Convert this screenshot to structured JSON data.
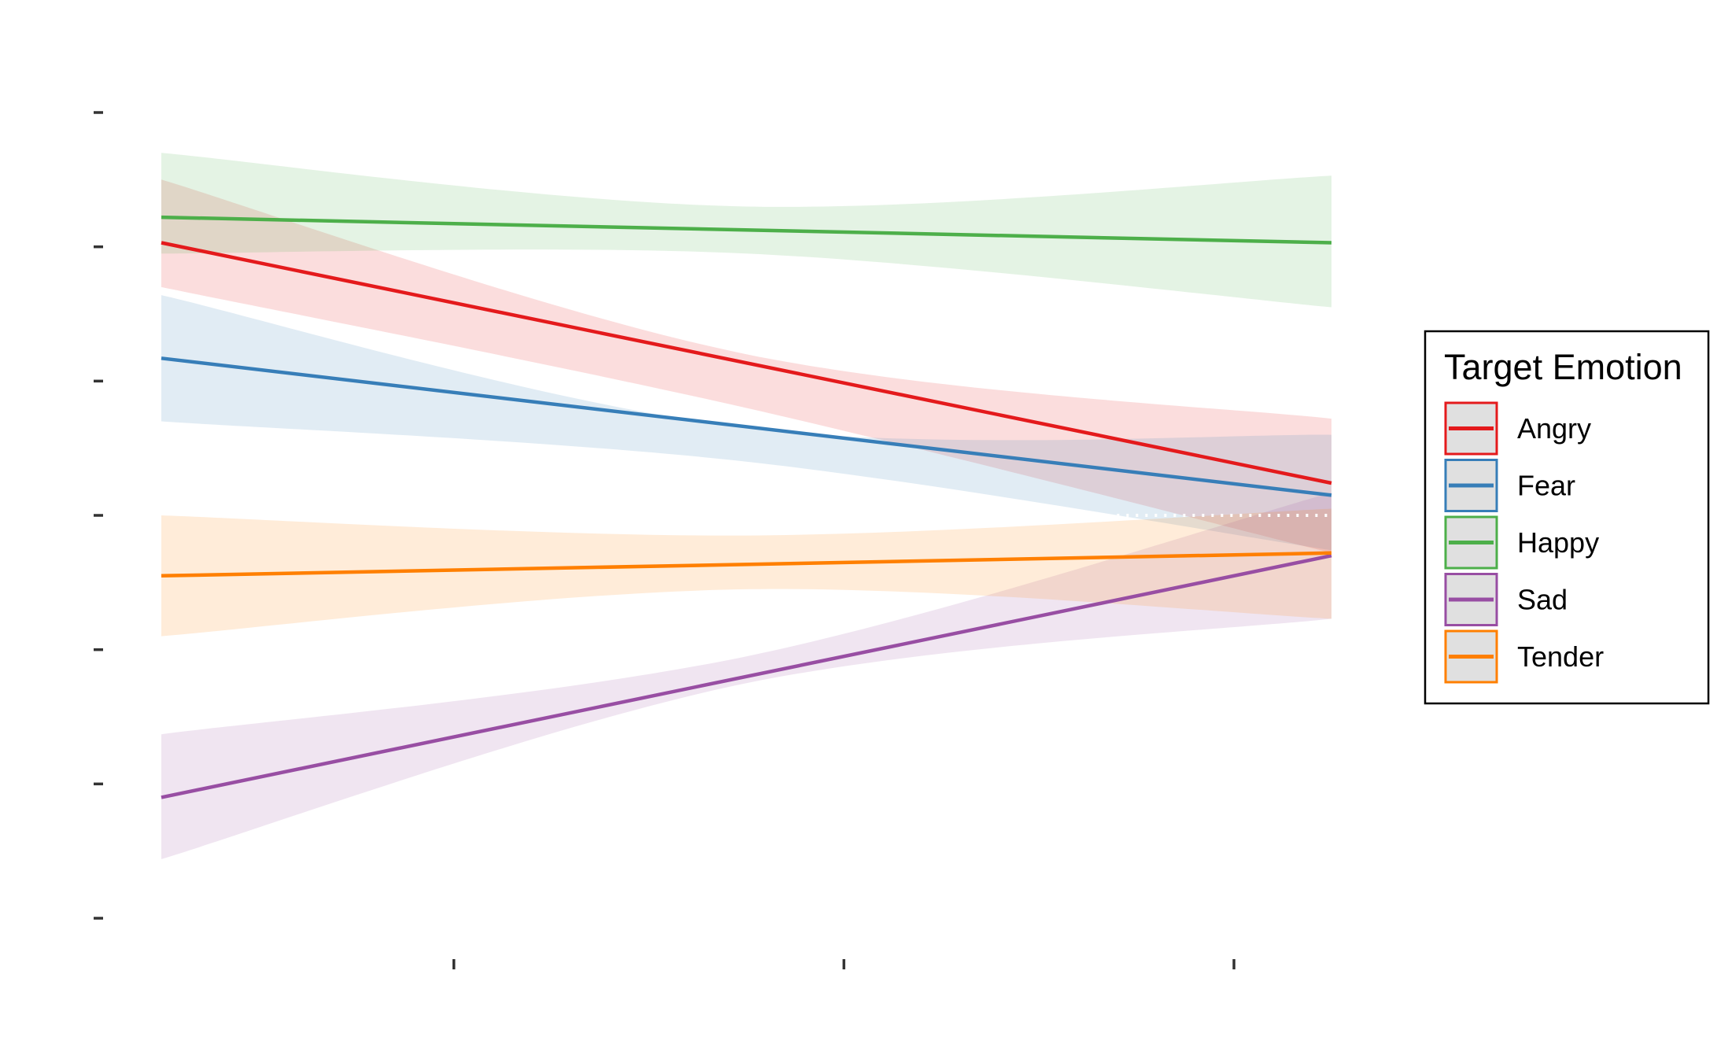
{
  "chart_data": {
    "type": "line",
    "title": "",
    "xlabel": "",
    "ylabel": "",
    "x_tick_labels": [
      "",
      "",
      ""
    ],
    "y_tick_labels": [
      "",
      "",
      "",
      "",
      "",
      "",
      ""
    ],
    "xlim": [
      0,
      3
    ],
    "ylim": [
      0,
      6
    ],
    "x_ticks": [
      0.75,
      1.75,
      2.75
    ],
    "y_ticks": [
      0,
      1,
      2,
      3,
      4,
      5,
      6
    ],
    "reference_line": {
      "y": 3.0,
      "x_from": 2.45,
      "x_to": 3.0,
      "style": "dotted",
      "color": "#ffffff"
    },
    "legend": {
      "title": "Target Emotion",
      "position": "right"
    },
    "series": [
      {
        "name": "Angry",
        "color": "#E41A1C",
        "x": [
          0,
          3
        ],
        "y": [
          5.03,
          3.24
        ],
        "band_x": [
          0,
          1.5,
          3
        ],
        "band_lower": [
          4.7,
          3.8,
          2.72
        ],
        "band_upper": [
          5.5,
          4.2,
          3.72
        ]
      },
      {
        "name": "Fear",
        "color": "#377EB8",
        "x": [
          0,
          3
        ],
        "y": [
          4.17,
          3.15
        ],
        "band_x": [
          0,
          1.5,
          3
        ],
        "band_lower": [
          3.7,
          3.4,
          2.74
        ],
        "band_upper": [
          4.64,
          3.65,
          3.6
        ]
      },
      {
        "name": "Happy",
        "color": "#4DAF4A",
        "x": [
          0,
          3
        ],
        "y": [
          5.22,
          5.03
        ],
        "band_x": [
          0,
          1.5,
          3
        ],
        "band_lower": [
          4.95,
          4.95,
          4.55
        ],
        "band_upper": [
          5.7,
          5.3,
          5.53
        ]
      },
      {
        "name": "Sad",
        "color": "#984EA3",
        "x": [
          0,
          3
        ],
        "y": [
          0.9,
          2.7
        ],
        "band_x": [
          0,
          1.5,
          3
        ],
        "band_lower": [
          0.44,
          1.75,
          2.23
        ],
        "band_upper": [
          1.37,
          1.95,
          3.17
        ]
      },
      {
        "name": "Tender",
        "color": "#FF7F00",
        "x": [
          0,
          3
        ],
        "y": [
          2.55,
          2.72
        ],
        "band_x": [
          0,
          1.5,
          3
        ],
        "band_lower": [
          2.1,
          2.45,
          2.23
        ],
        "band_upper": [
          3.0,
          2.85,
          3.05
        ]
      }
    ]
  }
}
